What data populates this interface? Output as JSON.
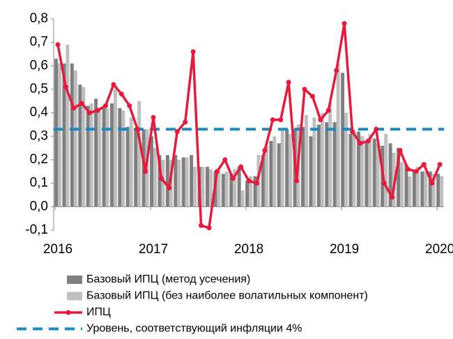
{
  "chart_data": {
    "type": "bar_line",
    "categories": [
      "2016",
      null,
      null,
      null,
      null,
      null,
      null,
      null,
      null,
      null,
      null,
      null,
      "2017",
      null,
      null,
      null,
      null,
      null,
      null,
      null,
      null,
      null,
      null,
      null,
      "2018",
      null,
      null,
      null,
      null,
      null,
      null,
      null,
      null,
      null,
      null,
      null,
      "2019",
      null,
      null,
      null,
      null,
      null,
      null,
      null,
      null,
      null,
      null,
      null,
      "2020"
    ],
    "series": [
      {
        "name": "Базовый ИПЦ (метод усечения)",
        "kind": "bar",
        "color": "#7f7f7f",
        "values": [
          0.63,
          0.61,
          0.61,
          0.52,
          0.43,
          0.46,
          0.42,
          0.44,
          0.42,
          0.34,
          0.33,
          0.33,
          0.3,
          0.22,
          0.22,
          0.22,
          0.21,
          0.22,
          0.17,
          0.17,
          0.15,
          0.14,
          0.14,
          0.17,
          0.11,
          0.13,
          0.22,
          0.28,
          0.27,
          0.33,
          0.33,
          0.34,
          0.3,
          0.35,
          0.36,
          0.36,
          0.57,
          0.31,
          0.32,
          0.28,
          0.29,
          0.26,
          0.27,
          0.25,
          0.18,
          0.15,
          0.15,
          0.15,
          0.14
        ]
      },
      {
        "name": "Базовый ИПЦ (без наиболее волатильных компонент)",
        "kind": "bar",
        "color": "#bfbfbf",
        "values": [
          0.61,
          0.69,
          0.58,
          0.51,
          0.44,
          0.42,
          0.42,
          0.5,
          0.41,
          0.38,
          0.45,
          0.33,
          0.25,
          0.2,
          0.2,
          0.2,
          0.21,
          0.17,
          0.17,
          0.16,
          0.15,
          0.15,
          0.16,
          0.07,
          0.13,
          0.22,
          0.26,
          0.3,
          0.33,
          0.31,
          0.35,
          0.39,
          0.38,
          0.4,
          0.44,
          0.61,
          0.4,
          0.32,
          0.3,
          0.31,
          0.27,
          0.31,
          0.23,
          0.19,
          0.13,
          0.17,
          0.15,
          0.14,
          0.13
        ]
      },
      {
        "name": "ИПЦ",
        "kind": "line",
        "color": "#e8193c",
        "values": [
          0.69,
          0.51,
          0.42,
          0.44,
          0.4,
          0.41,
          0.43,
          0.52,
          0.48,
          0.43,
          0.33,
          0.15,
          0.38,
          0.12,
          0.08,
          0.32,
          0.36,
          0.66,
          -0.08,
          -0.09,
          0.15,
          0.2,
          0.12,
          0.17,
          0.11,
          0.1,
          0.24,
          0.37,
          0.37,
          0.53,
          0.11,
          0.5,
          0.47,
          0.37,
          0.41,
          0.58,
          0.78,
          0.32,
          0.27,
          0.28,
          0.33,
          0.1,
          0.04,
          0.24,
          0.16,
          0.15,
          0.18,
          0.1,
          0.18
        ]
      }
    ],
    "reference": {
      "name": "Уровень, соответствующий инфляции 4%",
      "value": 0.33,
      "color": "#1a8ac4"
    },
    "ylim": [
      -0.1,
      0.8
    ],
    "yticks": [
      {
        "value": -0.1,
        "label": "-0,1"
      },
      {
        "value": 0,
        "label": "0,0"
      },
      {
        "value": 0.1,
        "label": "0,1"
      },
      {
        "value": 0.2,
        "label": "0,2"
      },
      {
        "value": 0.3,
        "label": "0,3"
      },
      {
        "value": 0.4,
        "label": "0,4"
      },
      {
        "value": 0.5,
        "label": "0,5"
      },
      {
        "value": 0.6,
        "label": "0,6"
      },
      {
        "value": 0.7,
        "label": "0,7"
      },
      {
        "value": 0.8,
        "label": "0,8"
      }
    ]
  }
}
